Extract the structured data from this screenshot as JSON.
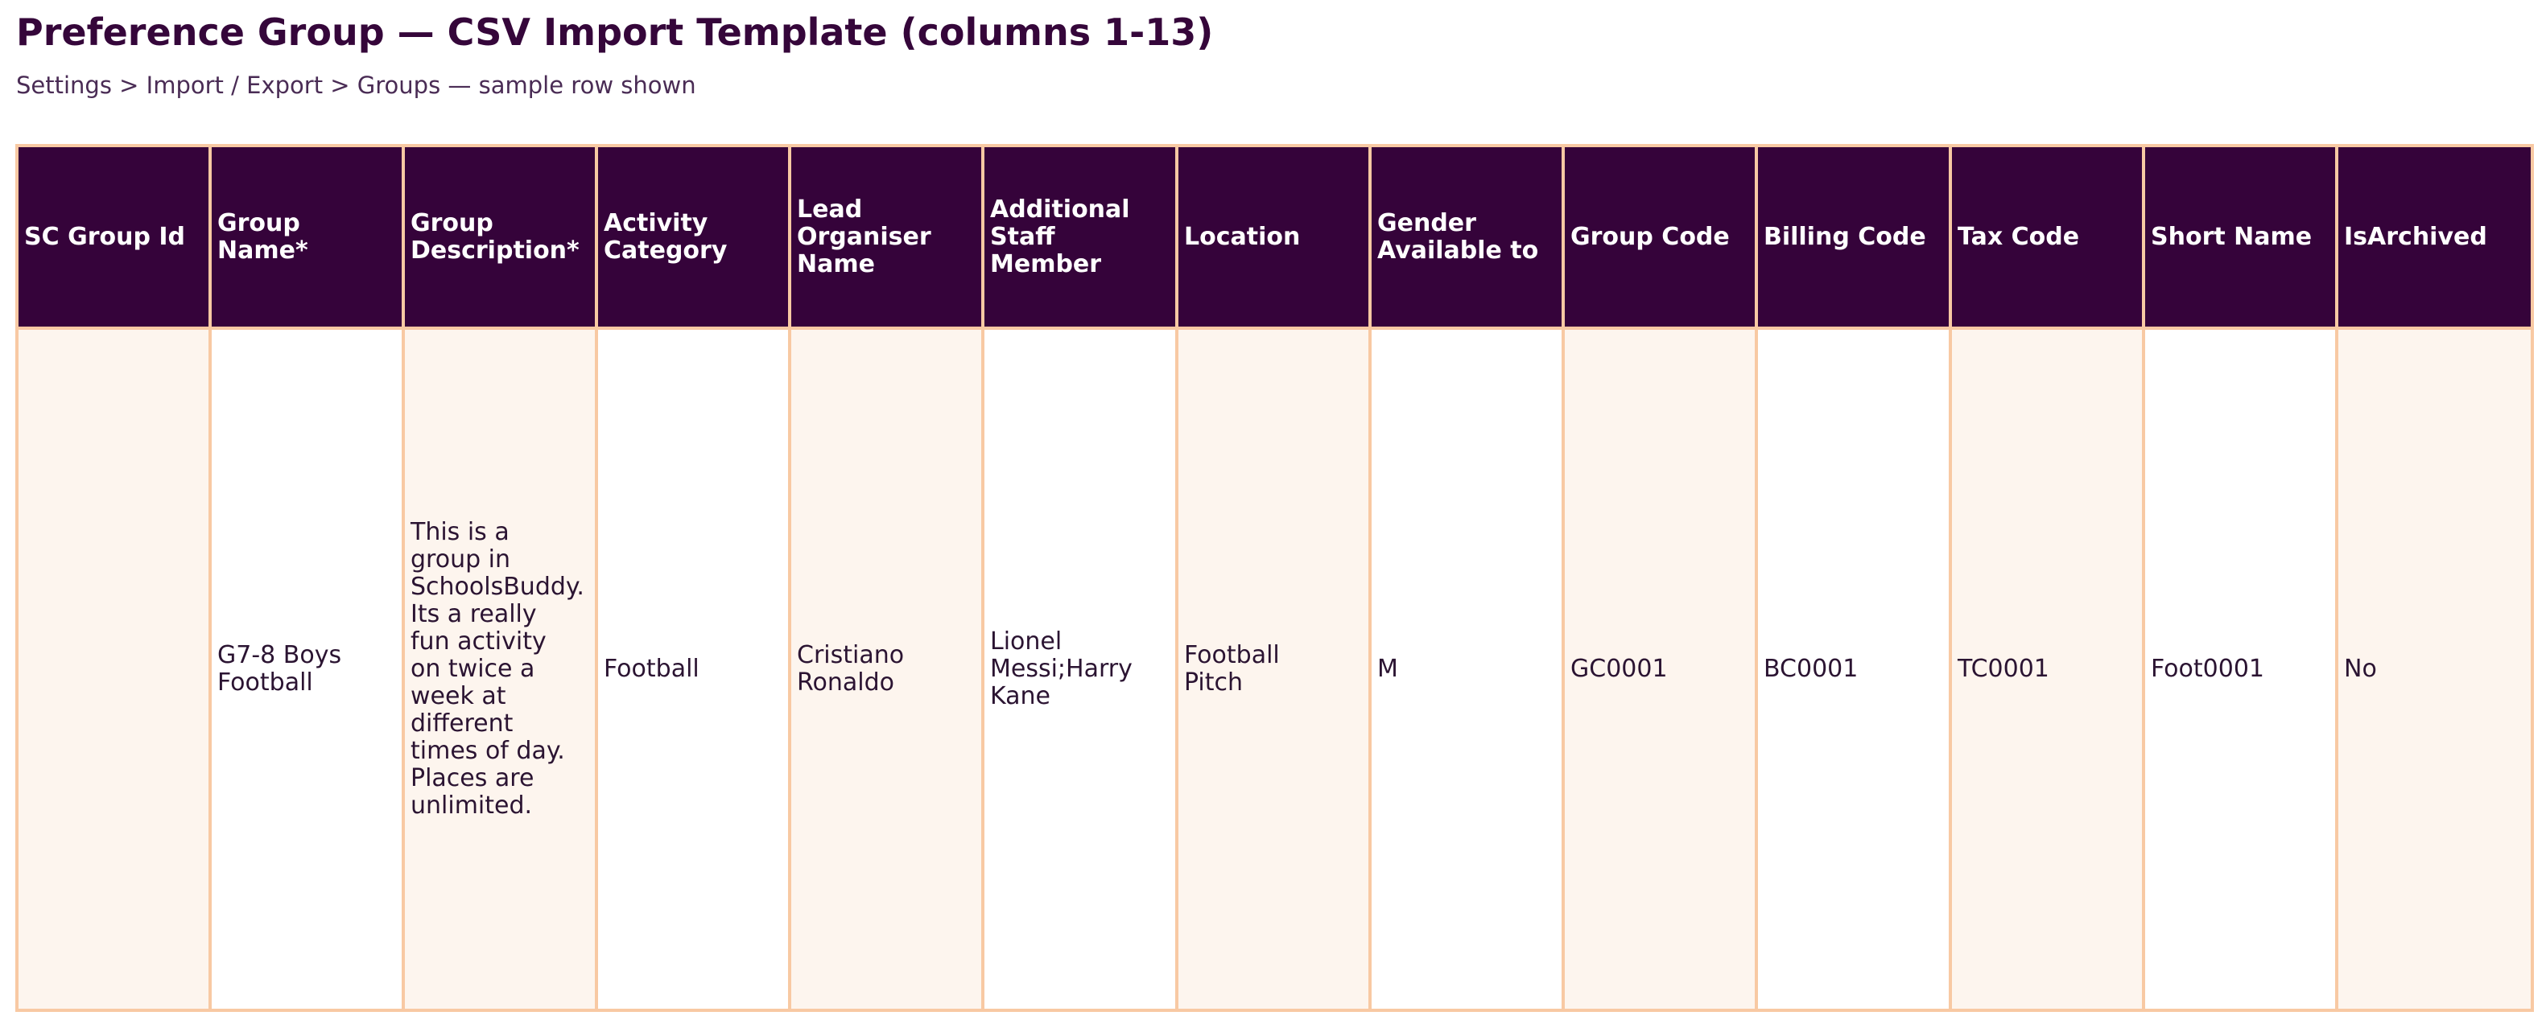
{
  "page": {
    "title": "Preference Group — CSV Import Template (columns 1-13)",
    "breadcrumb": "Settings > Import / Export > Groups — sample row shown"
  },
  "colors": {
    "header_bg": "#35033a",
    "header_text": "#ffffff",
    "border": "#f8c9a3",
    "shaded_cell": "#fdf5ee",
    "title_text": "#35063a"
  },
  "table": {
    "columns": [
      "SC Group Id",
      "Group Name*",
      "Group\nDescription*",
      "Activity\nCategory",
      "Lead\nOrganiser\nName",
      "Additional\nStaff Member",
      "Location",
      "Gender\nAvailable to",
      "Group Code",
      "Billing Code",
      "Tax Code",
      "Short Name",
      "IsArchived"
    ],
    "sample_row": [
      "",
      "G7-8 Boys\nFootball",
      "This is a\ngroup in\nSchoolsBuddy.\nIts a really\nfun activity\non twice a\nweek at\ndifferent\ntimes of day.\nPlaces are\nunlimited.",
      "Football",
      "Cristiano\nRonaldo",
      "Lionel\nMessi;Harry\nKane",
      "Football\nPitch",
      "M",
      "GC0001",
      "BC0001",
      "TC0001",
      "Foot0001",
      "No"
    ]
  }
}
